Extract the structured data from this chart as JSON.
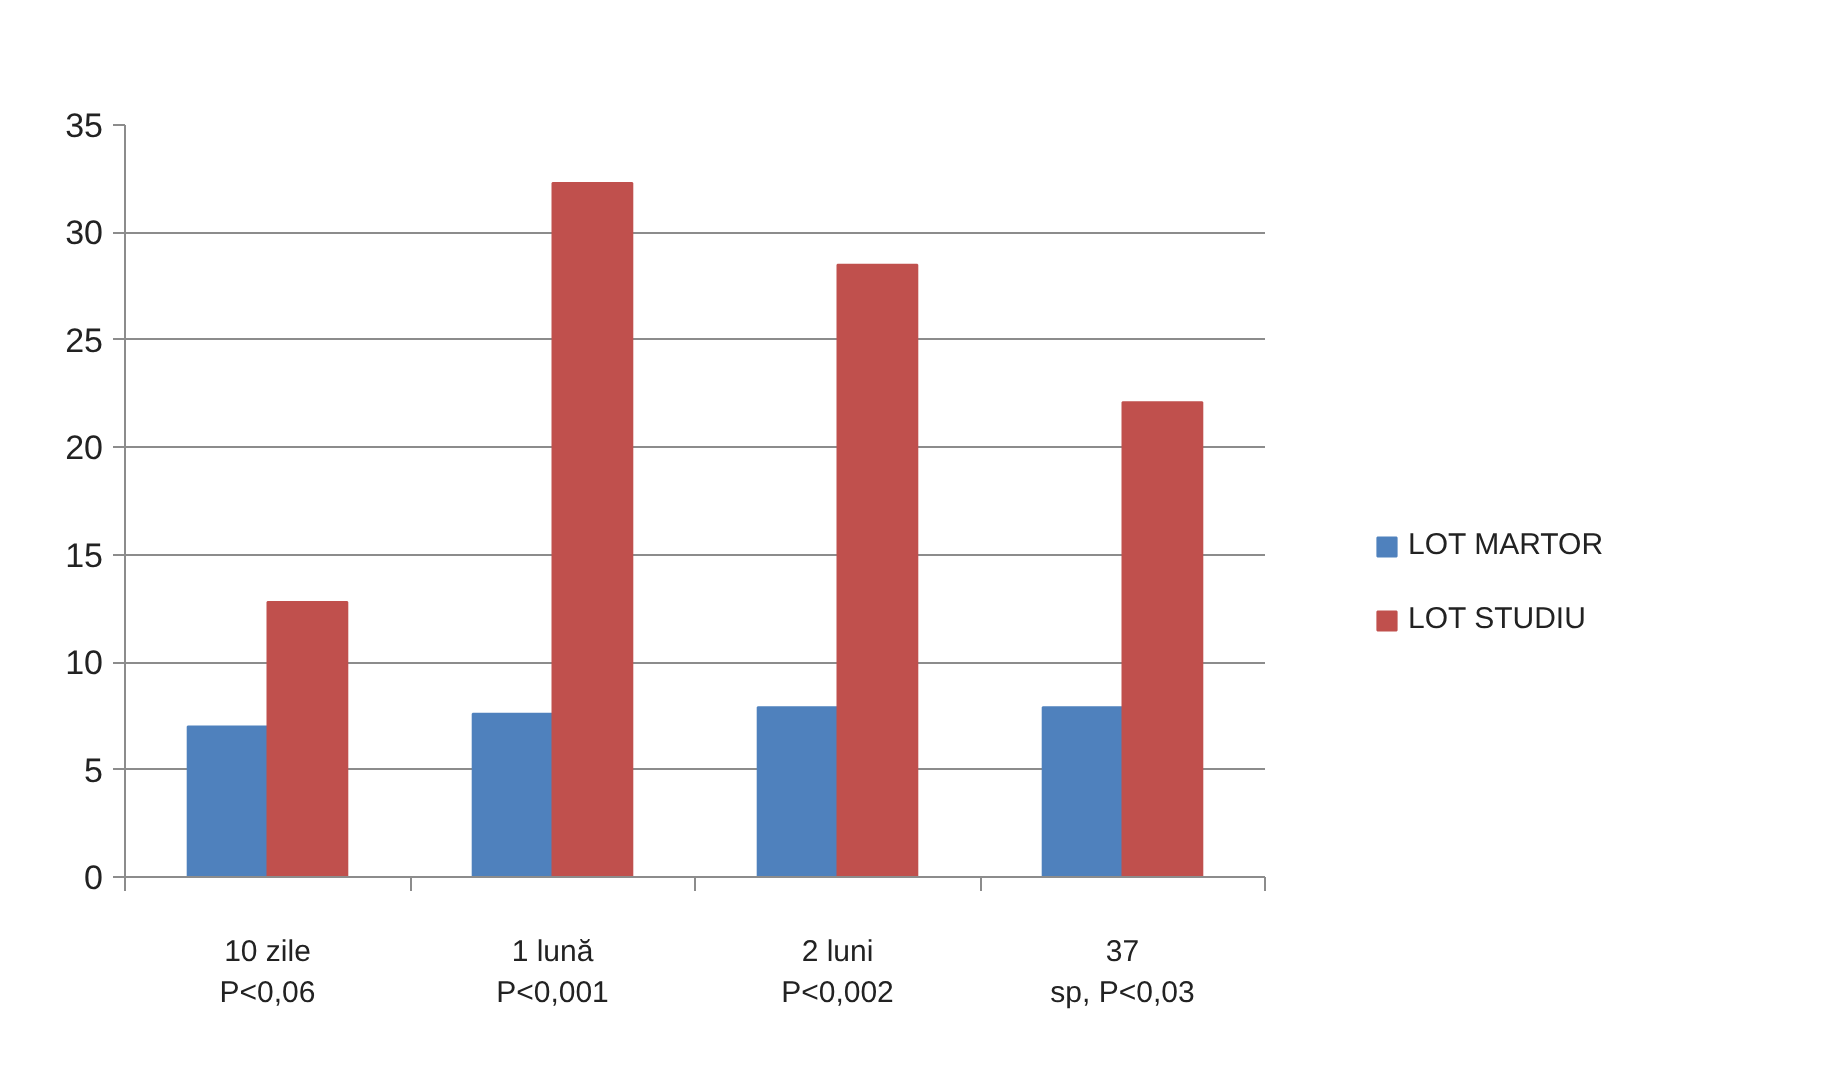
{
  "chart_data": {
    "type": "bar",
    "categories": [
      "10 zile\nP<0,06",
      "1 lună\nP<0,001",
      "2 luni\nP<0,002",
      "37\nsp, P<0,03"
    ],
    "series": [
      {
        "name": "LOT MARTOR",
        "color": "#4f81bd",
        "values": [
          7,
          7.6,
          7.9,
          7.9
        ]
      },
      {
        "name": "LOT STUDIU",
        "color": "#c0504d",
        "values": [
          12.8,
          32.3,
          28.5,
          22.1
        ]
      }
    ],
    "ylim": [
      0,
      35
    ],
    "yticks": [
      0,
      5,
      10,
      15,
      20,
      25,
      30,
      35
    ],
    "grid": "y",
    "legend": "right"
  }
}
